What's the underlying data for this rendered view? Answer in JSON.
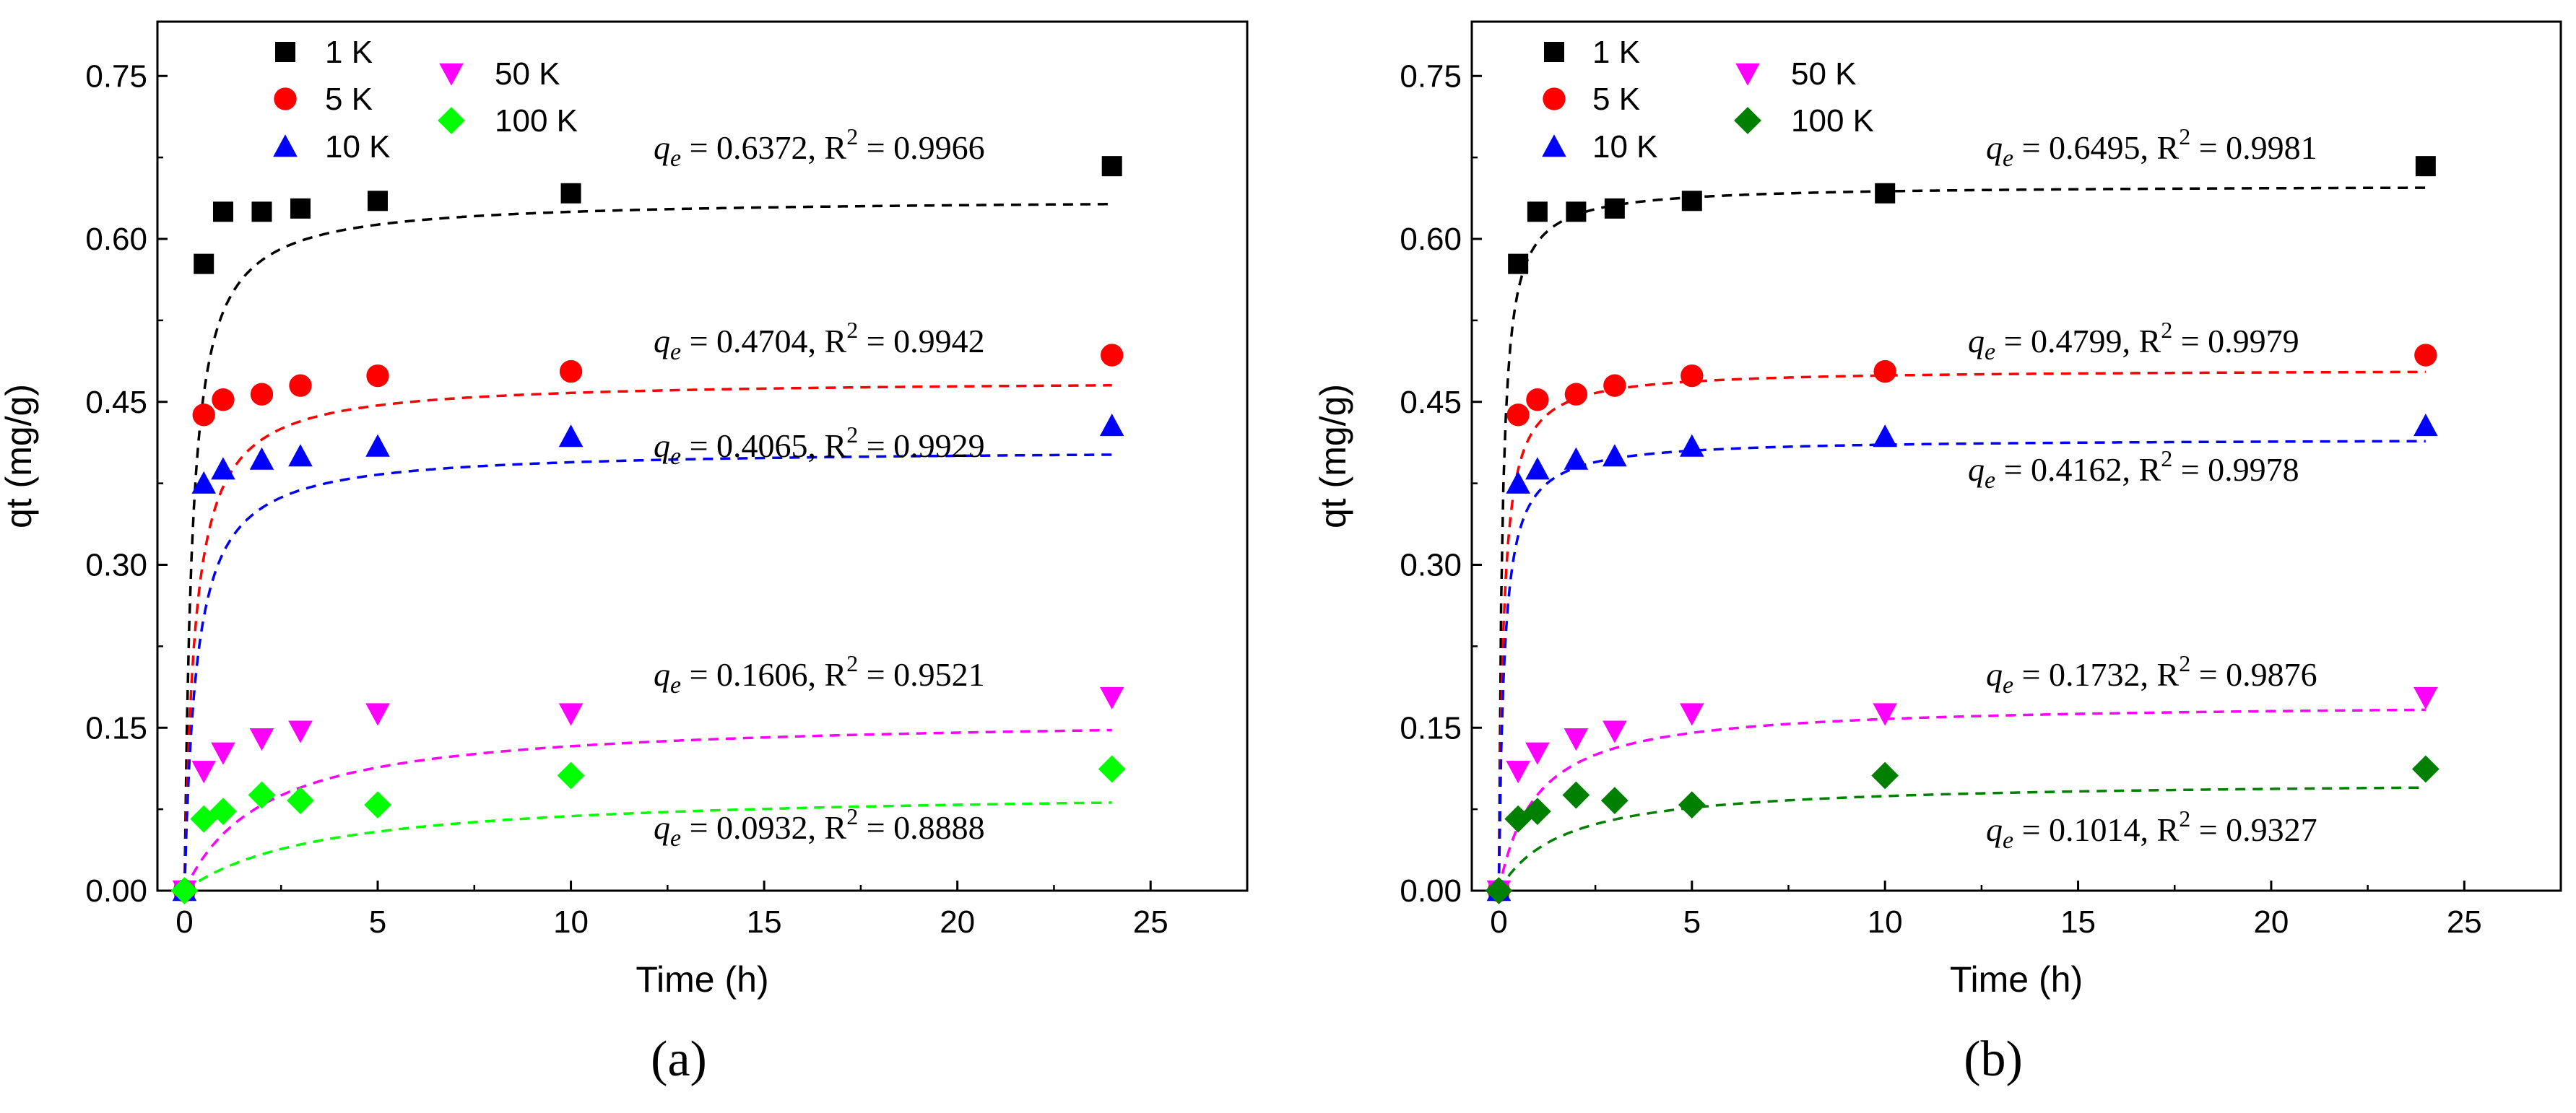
{
  "chart_data": [
    {
      "type": "scatter",
      "panel_label": "(a)",
      "xlabel": "Time (h)",
      "ylabel": "qt (mg/g)",
      "xlim": [
        -0.7,
        27.5
      ],
      "ylim": [
        0,
        0.8
      ],
      "xticks": [
        "0",
        "5",
        "10",
        "15",
        "20",
        "25"
      ],
      "yticks": [
        "0.00",
        "0.15",
        "0.30",
        "0.45",
        "0.60",
        "0.75"
      ],
      "grid": false,
      "legend_position": "top-left",
      "x": [
        0,
        0.5,
        1,
        2,
        3,
        5,
        10,
        24
      ],
      "series": [
        {
          "name": "1 K",
          "marker": "square",
          "color": "#000000",
          "values": [
            0,
            0.577,
            0.625,
            0.625,
            0.628,
            0.635,
            0.642,
            0.667
          ],
          "fit_qe": 0.6372,
          "fit_k": 8.0,
          "fit_color": "#000000",
          "annotation": {
            "qe_label": "q",
            "qe_sub": "e",
            "qe_value": " = 0.6372,  R",
            "r2_sup": "2",
            "r2_value": " = 0.9966"
          }
        },
        {
          "name": "5 K",
          "marker": "circle",
          "color": "#ff0000",
          "values": [
            0,
            0.438,
            0.452,
            0.457,
            0.465,
            0.474,
            0.478,
            0.493
          ],
          "fit_qe": 0.4704,
          "fit_k": 8.0,
          "fit_color": "#ff0000",
          "annotation": {
            "qe_label": "q",
            "qe_sub": "e",
            "qe_value": " = 0.4704,  R",
            "r2_sup": "2",
            "r2_value": " = 0.9942"
          }
        },
        {
          "name": "10 K",
          "marker": "triangle-up",
          "color": "#0000ff",
          "values": [
            0,
            0.375,
            0.388,
            0.397,
            0.4,
            0.409,
            0.418,
            0.428
          ],
          "fit_qe": 0.4065,
          "fit_k": 8.0,
          "fit_color": "#0000ff",
          "annotation": {
            "qe_label": "q",
            "qe_sub": "e",
            "qe_value": " = 0.4065,  R",
            "r2_sup": "2",
            "r2_value": " = 0.9929"
          }
        },
        {
          "name": "50 K",
          "marker": "triangle-down",
          "color": "#ff00ff",
          "values": [
            0,
            0.11,
            0.127,
            0.14,
            0.147,
            0.163,
            0.163,
            0.178
          ],
          "fit_qe": 0.1606,
          "fit_k": 3.0,
          "fit_color": "#ff00ff",
          "annotation": {
            "qe_label": "q",
            "qe_sub": "e",
            "qe_value": " = 0.1606,  R",
            "r2_sup": "2",
            "r2_value": " = 0.9521"
          }
        },
        {
          "name": "100 K",
          "marker": "diamond",
          "color": "#00ff00",
          "values": [
            0,
            0.066,
            0.073,
            0.088,
            0.083,
            0.079,
            0.106,
            0.112
          ],
          "fit_qe": 0.0932,
          "fit_k": 3.0,
          "fit_color": "#00ff00",
          "annotation": {
            "qe_label": "q",
            "qe_sub": "e",
            "qe_value": " = 0.0932,  R",
            "r2_sup": "2",
            "r2_value": " = 0.8888"
          }
        }
      ]
    },
    {
      "type": "scatter",
      "panel_label": "(b)",
      "xlabel": "Time (h)",
      "ylabel": "qt (mg/g)",
      "xlim": [
        -0.7,
        27.5
      ],
      "ylim": [
        0,
        0.8
      ],
      "xticks": [
        "0",
        "5",
        "10",
        "15",
        "20",
        "25"
      ],
      "yticks": [
        "0.00",
        "0.15",
        "0.30",
        "0.45",
        "0.60",
        "0.75"
      ],
      "grid": false,
      "legend_position": "top-left",
      "x": [
        0,
        0.5,
        1,
        2,
        3,
        5,
        10,
        24
      ],
      "series": [
        {
          "name": "1 K",
          "marker": "square",
          "color": "#000000",
          "values": [
            0,
            0.577,
            0.625,
            0.625,
            0.628,
            0.635,
            0.642,
            0.667
          ],
          "fit_qe": 0.6495,
          "fit_k": 17.5,
          "fit_color": "#000000",
          "annotation": {
            "qe_label": "q",
            "qe_sub": "e",
            "qe_value": " = 0.6495,  R",
            "r2_sup": "2",
            "r2_value": " = 0.9981"
          }
        },
        {
          "name": "5 K",
          "marker": "circle",
          "color": "#ff0000",
          "values": [
            0,
            0.438,
            0.452,
            0.457,
            0.465,
            0.474,
            0.478,
            0.493
          ],
          "fit_qe": 0.4799,
          "fit_k": 17.5,
          "fit_color": "#ff0000",
          "annotation": {
            "qe_label": "q",
            "qe_sub": "e",
            "qe_value": " = 0.4799,  R",
            "r2_sup": "2",
            "r2_value": " = 0.9979"
          }
        },
        {
          "name": "10 K",
          "marker": "triangle-up",
          "color": "#0000ff",
          "values": [
            0,
            0.375,
            0.388,
            0.397,
            0.4,
            0.409,
            0.418,
            0.428
          ],
          "fit_qe": 0.4162,
          "fit_k": 17.5,
          "fit_color": "#0000ff",
          "annotation": {
            "qe_label": "q",
            "qe_sub": "e",
            "qe_value": " = 0.4162,  R",
            "r2_sup": "2",
            "r2_value": " = 0.9978"
          }
        },
        {
          "name": "50 K",
          "marker": "triangle-down",
          "color": "#ff00ff",
          "values": [
            0,
            0.11,
            0.127,
            0.14,
            0.147,
            0.163,
            0.163,
            0.178
          ],
          "fit_qe": 0.1732,
          "fit_k": 6.0,
          "fit_color": "#ff00ff",
          "annotation": {
            "qe_label": "q",
            "qe_sub": "e",
            "qe_value": " = 0.1732,  R",
            "r2_sup": "2",
            "r2_value": " = 0.9876"
          }
        },
        {
          "name": "100 K",
          "marker": "diamond",
          "color": "#008000",
          "values": [
            0,
            0.066,
            0.073,
            0.088,
            0.083,
            0.079,
            0.106,
            0.112
          ],
          "fit_qe": 0.1014,
          "fit_k": 6.0,
          "fit_color": "#008000",
          "annotation": {
            "qe_label": "q",
            "qe_sub": "e",
            "qe_value": " = 0.1014,  R",
            "r2_sup": "2",
            "r2_value": " = 0.9327"
          }
        }
      ]
    }
  ]
}
